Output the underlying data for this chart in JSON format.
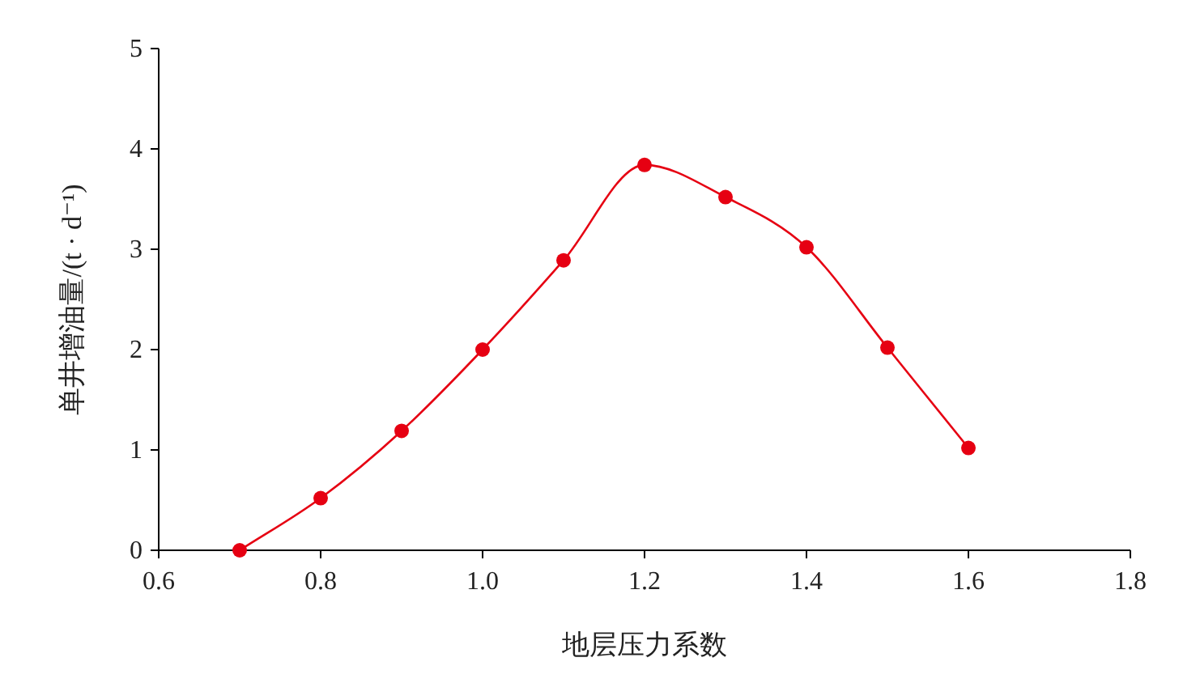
{
  "chart_data": {
    "type": "line",
    "xlabel": "地层压力系数",
    "ylabel": "单井增油量/(t · d⁻¹)",
    "x": [
      0.7,
      0.8,
      0.9,
      1.0,
      1.1,
      1.2,
      1.3,
      1.4,
      1.5,
      1.6
    ],
    "series": [
      {
        "color": "#e60012",
        "values": [
          0,
          0.52,
          1.19,
          2.0,
          2.89,
          3.84,
          3.52,
          3.02,
          2.02,
          1.02
        ]
      }
    ],
    "xlim": [
      0.6,
      1.8
    ],
    "xticks": [
      0.6,
      0.8,
      {
        "value": 1.0,
        "label": "1.0"
      },
      1.2,
      1.4,
      1.6,
      1.8
    ],
    "ylim": [
      0,
      5
    ],
    "yticks": [
      0,
      1,
      2,
      3,
      4,
      5
    ],
    "marker": "circle",
    "line_style": "solid",
    "grid": false
  }
}
